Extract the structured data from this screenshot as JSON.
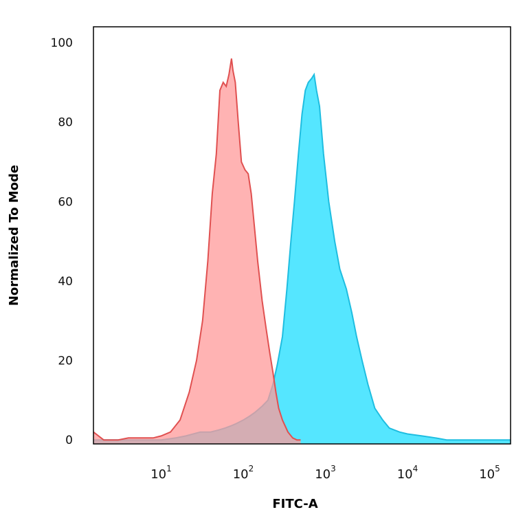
{
  "chart_data": {
    "type": "area",
    "xlabel": "FITC-A",
    "ylabel": "Normalized To Mode",
    "xscale": "log",
    "xlim": [
      1.5,
      180000
    ],
    "ylim": [
      -1,
      104
    ],
    "yticks": [
      0,
      20,
      40,
      60,
      80,
      100
    ],
    "ytick_labels": [
      "0",
      "20",
      "40",
      "60",
      "80",
      "100"
    ],
    "xticks": [
      10,
      100,
      1000,
      10000,
      100000
    ],
    "xtick_labels": [
      {
        "base": "10",
        "exp": "1"
      },
      {
        "base": "10",
        "exp": "2"
      },
      {
        "base": "10",
        "exp": "3"
      },
      {
        "base": "10",
        "exp": "4"
      },
      {
        "base": "10",
        "exp": "5"
      }
    ],
    "grid": false,
    "series": [
      {
        "color": "#ff9999",
        "stroke": "#e05050",
        "x": [
          1.5,
          2,
          3,
          4,
          6,
          8,
          10,
          13,
          17,
          22,
          27,
          32,
          37,
          42,
          47,
          52,
          57,
          62,
          67,
          72,
          75,
          80,
          87,
          95,
          105,
          115,
          125,
          135,
          150,
          170,
          190,
          210,
          230,
          250,
          270,
          300,
          350,
          400,
          450,
          500
        ],
        "y": [
          2,
          0,
          0,
          0.5,
          0.5,
          0.5,
          1,
          2,
          5,
          12,
          20,
          30,
          45,
          62,
          72,
          88,
          90,
          89,
          92,
          96,
          93,
          90,
          80,
          70,
          68,
          67,
          62,
          55,
          45,
          35,
          28,
          22,
          17,
          12,
          8,
          5,
          2,
          0.5,
          0,
          0
        ]
      },
      {
        "color": "#55e6ff",
        "stroke": "#1ebde0",
        "x": [
          1.5,
          5,
          10,
          15,
          20,
          30,
          40,
          50,
          60,
          70,
          80,
          100,
          120,
          140,
          170,
          200,
          230,
          260,
          300,
          340,
          380,
          420,
          470,
          520,
          570,
          620,
          680,
          730,
          780,
          850,
          950,
          1100,
          1300,
          1500,
          1800,
          2100,
          2400,
          2800,
          3300,
          4000,
          5000,
          6000,
          8000,
          10000,
          15000,
          22000,
          30000,
          50000,
          100000,
          180000
        ],
        "y": [
          0,
          0,
          0,
          0.5,
          1,
          2,
          2,
          2.5,
          3,
          3.5,
          4,
          5,
          6,
          7,
          8.5,
          10,
          14,
          19,
          26,
          38,
          50,
          60,
          72,
          82,
          88,
          90,
          91,
          92,
          88,
          84,
          72,
          60,
          50,
          43,
          38,
          32,
          26,
          20,
          14,
          8,
          5,
          3,
          2,
          1.5,
          1,
          0.5,
          0,
          0,
          0,
          0
        ]
      }
    ]
  }
}
